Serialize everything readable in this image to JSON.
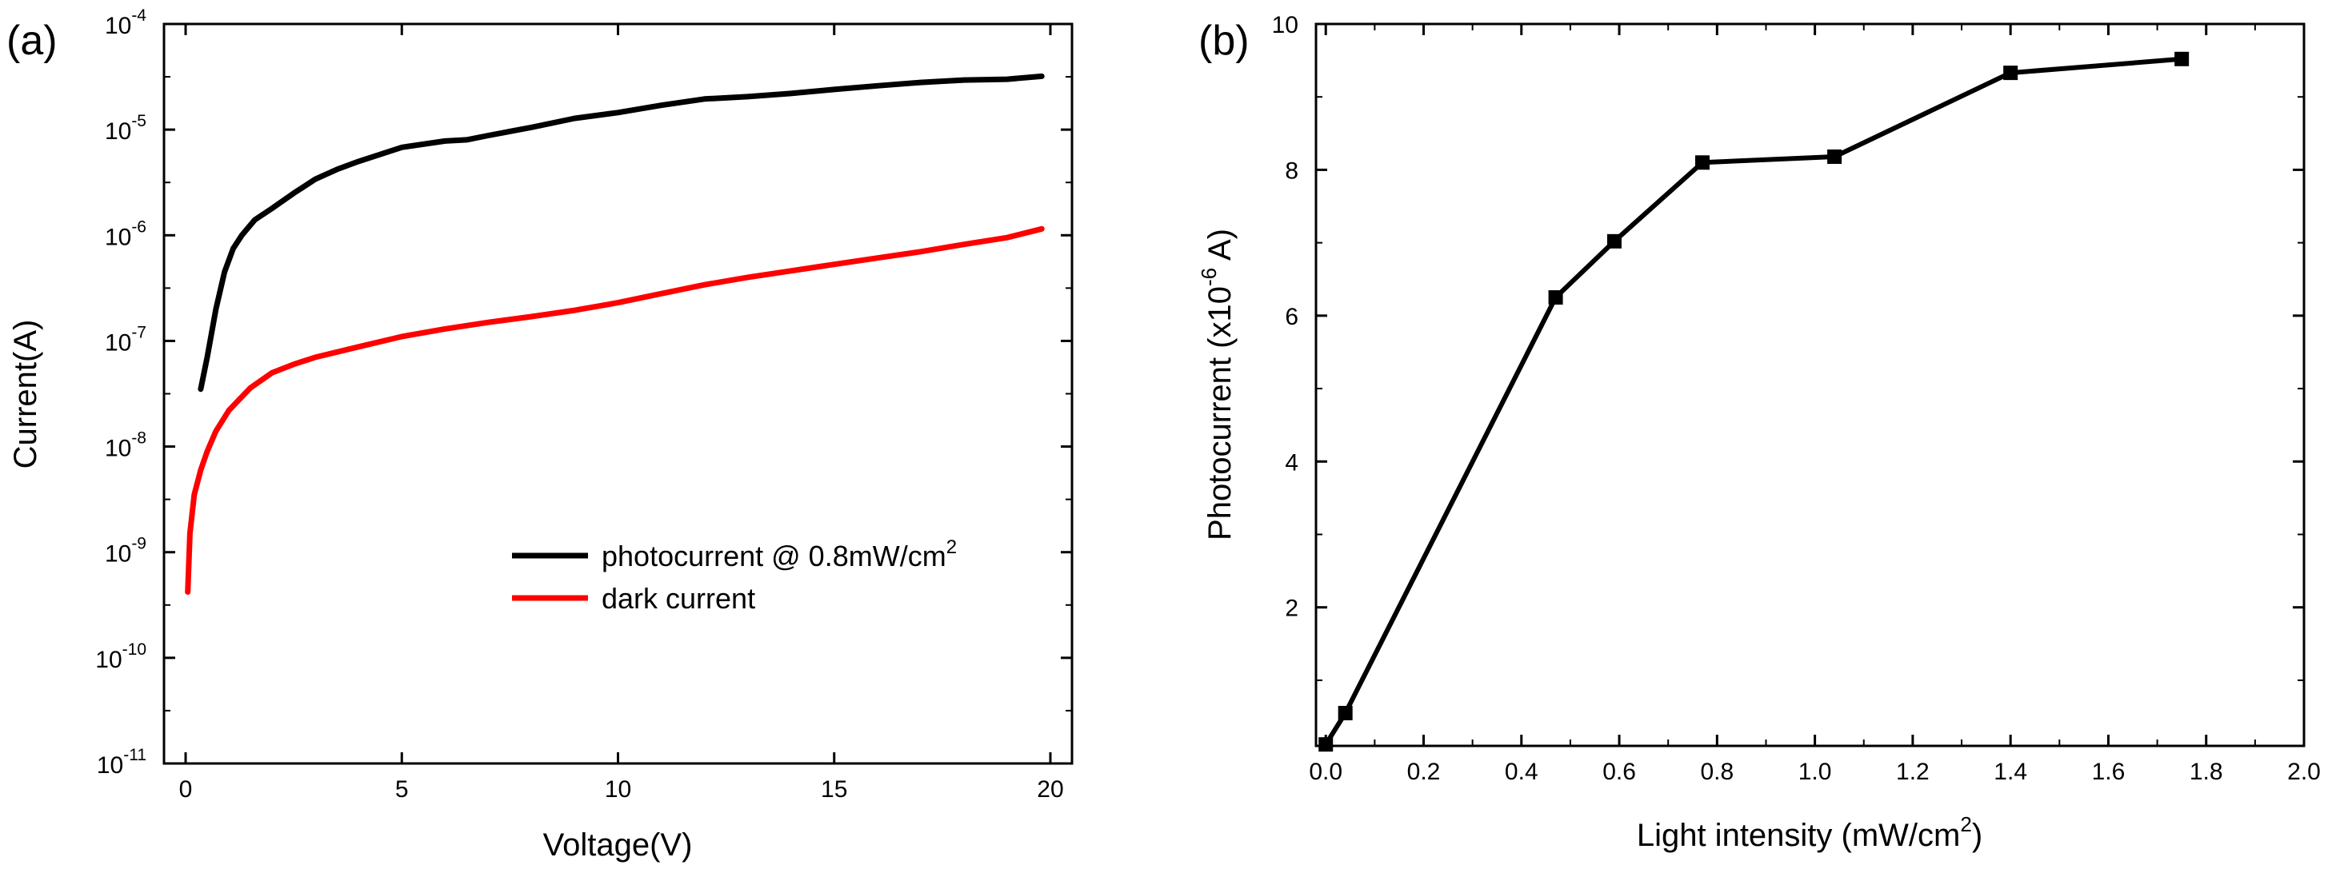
{
  "figure": {
    "panels": [
      "(a)",
      "(b)"
    ]
  },
  "chart_data": [
    {
      "type": "line",
      "panel": "(a)",
      "title": "",
      "xlabel": "Voltage(V)",
      "ylabel": "Current(A)",
      "xlim": [
        -0.5,
        20.5
      ],
      "ylim": [
        1e-11,
        0.0001
      ],
      "yscale": "log",
      "xticks": [
        0,
        5,
        10,
        15,
        20
      ],
      "yticks": [
        {
          "value": 0.0001,
          "base": "10",
          "exp": "-4"
        },
        {
          "value": 1e-05,
          "base": "10",
          "exp": "-5"
        },
        {
          "value": 1e-06,
          "base": "10",
          "exp": "-6"
        },
        {
          "value": 1e-07,
          "base": "10",
          "exp": "-7"
        },
        {
          "value": 1e-08,
          "base": "10",
          "exp": "-8"
        },
        {
          "value": 1e-09,
          "base": "10",
          "exp": "-9"
        },
        {
          "value": 1e-10,
          "base": "10",
          "exp": "-10"
        },
        {
          "value": 1e-11,
          "base": "10",
          "exp": "-11"
        }
      ],
      "legend_position": "lower-right",
      "series": [
        {
          "name": "photocurrent @ 0.8mW/cm",
          "name_sup": "2",
          "color": "#000000",
          "x": [
            0.35,
            0.5,
            0.7,
            0.9,
            1.1,
            1.3,
            1.6,
            2.0,
            2.5,
            3.0,
            3.5,
            4.0,
            5.0,
            6.0,
            6.5,
            7.0,
            8.0,
            9.0,
            10.0,
            11.0,
            12.0,
            13.0,
            14.0,
            15.0,
            16.0,
            17.0,
            18.0,
            19.0,
            19.8
          ],
          "y": [
            3.5e-08,
            7e-08,
            2e-07,
            4.5e-07,
            7.5e-07,
            1e-06,
            1.4e-06,
            1.8e-06,
            2.5e-06,
            3.4e-06,
            4.2e-06,
            5e-06,
            6.8e-06,
            7.8e-06,
            8e-06,
            8.8e-06,
            1.05e-05,
            1.28e-05,
            1.45e-05,
            1.7e-05,
            1.95e-05,
            2.05e-05,
            2.2e-05,
            2.4e-05,
            2.6e-05,
            2.8e-05,
            2.95e-05,
            3e-05,
            3.2e-05
          ]
        },
        {
          "name": "dark current",
          "name_sup": "",
          "color": "#ff0000",
          "x": [
            0.05,
            0.1,
            0.2,
            0.35,
            0.5,
            0.7,
            1.0,
            1.5,
            2.0,
            2.5,
            3.0,
            4.0,
            5.0,
            6.0,
            7.0,
            8.0,
            9.0,
            10.0,
            11.0,
            12.0,
            13.0,
            14.0,
            15.0,
            16.0,
            17.0,
            18.0,
            19.0,
            19.8
          ],
          "y": [
            4.2e-10,
            1.5e-09,
            3.5e-09,
            6e-09,
            9e-09,
            1.4e-08,
            2.2e-08,
            3.6e-08,
            5e-08,
            6e-08,
            7e-08,
            8.8e-08,
            1.1e-07,
            1.3e-07,
            1.5e-07,
            1.7e-07,
            1.95e-07,
            2.3e-07,
            2.8e-07,
            3.4e-07,
            4e-07,
            4.6e-07,
            5.3e-07,
            6.1e-07,
            7e-07,
            8.2e-07,
            9.5e-07,
            1.15e-06
          ]
        }
      ]
    },
    {
      "type": "line",
      "panel": "(b)",
      "title": "",
      "xlabel": "Light intensity (mW/cm",
      "xlabel_sup": "2",
      "xlabel_suffix": ")",
      "ylabel": "Photocurrent (x10",
      "ylabel_sup": "-6",
      "ylabel_suffix": " A)",
      "xlim": [
        -0.02,
        2.0
      ],
      "ylim": [
        0.1,
        10
      ],
      "xticks": [
        "0.0",
        "0.2",
        "0.4",
        "0.6",
        "0.8",
        "1.0",
        "1.2",
        "1.4",
        "1.6",
        "1.8",
        "2.0"
      ],
      "yticks": [
        "2",
        "4",
        "6",
        "8",
        "10"
      ],
      "series": [
        {
          "name": "photocurrent",
          "color": "#000000",
          "marker": "square",
          "x": [
            0.0,
            0.04,
            0.47,
            0.59,
            0.77,
            1.04,
            1.4,
            1.75
          ],
          "y": [
            0.12,
            0.55,
            6.25,
            7.02,
            8.1,
            8.18,
            9.33,
            9.52
          ]
        }
      ]
    }
  ]
}
